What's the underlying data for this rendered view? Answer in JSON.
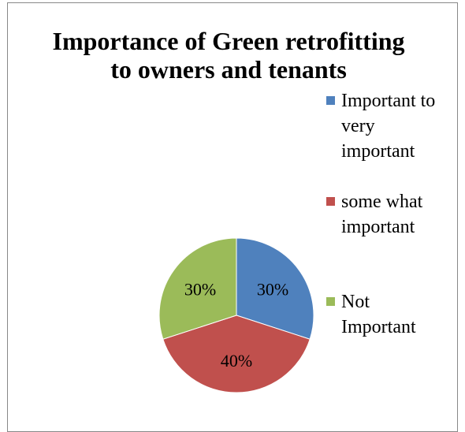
{
  "chart_data": {
    "type": "pie",
    "title_lines": [
      "Importance of Green retrofitting",
      "to owners and tenants"
    ],
    "categories": [
      "Important to very important",
      "some what important",
      "Not Important"
    ],
    "legend_lines": [
      [
        "Important to",
        "very",
        "important"
      ],
      [
        "some what",
        "important"
      ],
      [
        "Not",
        "Important"
      ]
    ],
    "values": [
      30,
      40,
      30
    ],
    "data_labels": [
      "30%",
      "40%",
      "30%"
    ],
    "colors": [
      "#4f81bd",
      "#c0504d",
      "#9bbb59"
    ],
    "legend_position": "right",
    "start_angle": "12 o'clock",
    "direction": "clockwise"
  }
}
